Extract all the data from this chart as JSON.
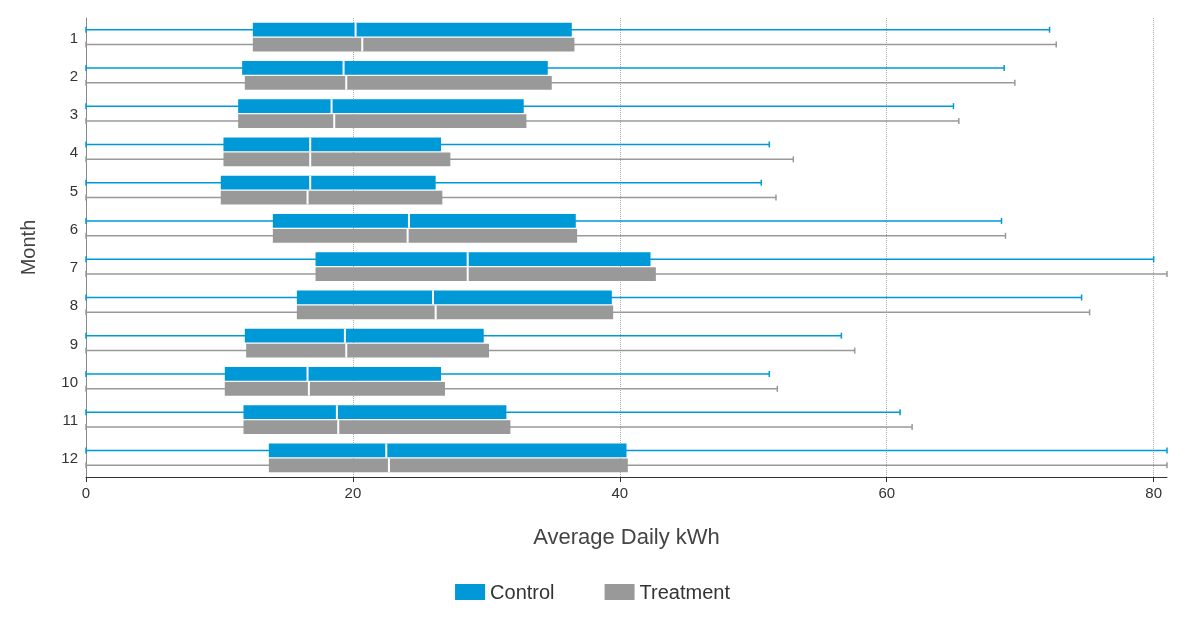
{
  "chart_data": {
    "type": "box",
    "orientation": "horizontal",
    "xlabel": "Average Daily kWh",
    "ylabel": "Month",
    "categories": [
      "1",
      "2",
      "3",
      "4",
      "5",
      "6",
      "7",
      "8",
      "9",
      "10",
      "11",
      "12"
    ],
    "xlim": [
      0,
      81
    ],
    "xticks": [
      0,
      20,
      40,
      60,
      80
    ],
    "grid": "x",
    "legend": "bottom",
    "series": [
      {
        "name": "Control",
        "color": "#0099d8",
        "boxes": [
          {
            "low": 0,
            "q1": 12.5,
            "median": 20.2,
            "q3": 36.4,
            "high": 72.2
          },
          {
            "low": 0,
            "q1": 11.7,
            "median": 19.3,
            "q3": 34.6,
            "high": 68.8
          },
          {
            "low": 0,
            "q1": 11.4,
            "median": 18.4,
            "q3": 32.8,
            "high": 65.0
          },
          {
            "low": 0,
            "q1": 10.3,
            "median": 16.8,
            "q3": 26.6,
            "high": 51.2
          },
          {
            "low": 0,
            "q1": 10.1,
            "median": 16.8,
            "q3": 26.2,
            "high": 50.6
          },
          {
            "low": 0,
            "q1": 14.0,
            "median": 24.2,
            "q3": 36.7,
            "high": 68.6
          },
          {
            "low": 0,
            "q1": 17.2,
            "median": 28.6,
            "q3": 42.3,
            "high": 80.0
          },
          {
            "low": 0,
            "q1": 15.8,
            "median": 26.0,
            "q3": 39.4,
            "high": 74.6
          },
          {
            "low": 0,
            "q1": 11.9,
            "median": 19.4,
            "q3": 29.8,
            "high": 56.6
          },
          {
            "low": 0,
            "q1": 10.4,
            "median": 16.6,
            "q3": 26.6,
            "high": 51.2
          },
          {
            "low": 0,
            "q1": 11.8,
            "median": 18.8,
            "q3": 31.5,
            "high": 61.0
          },
          {
            "low": 0,
            "q1": 13.7,
            "median": 22.5,
            "q3": 40.5,
            "high": 81
          }
        ]
      },
      {
        "name": "Treatment",
        "color": "#999999",
        "boxes": [
          {
            "low": 0,
            "q1": 12.5,
            "median": 20.7,
            "q3": 36.6,
            "high": 72.7
          },
          {
            "low": 0,
            "q1": 11.9,
            "median": 19.5,
            "q3": 34.9,
            "high": 69.6
          },
          {
            "low": 0,
            "q1": 11.4,
            "median": 18.6,
            "q3": 33.0,
            "high": 65.4
          },
          {
            "low": 0,
            "q1": 10.3,
            "median": 16.8,
            "q3": 27.3,
            "high": 53.0
          },
          {
            "low": 0,
            "q1": 10.1,
            "median": 16.6,
            "q3": 26.7,
            "high": 51.7
          },
          {
            "low": 0,
            "q1": 14.0,
            "median": 24.1,
            "q3": 36.8,
            "high": 68.9
          },
          {
            "low": 0,
            "q1": 17.2,
            "median": 28.6,
            "q3": 42.7,
            "high": 81
          },
          {
            "low": 0,
            "q1": 15.8,
            "median": 26.2,
            "q3": 39.5,
            "high": 75.2
          },
          {
            "low": 0,
            "q1": 12.0,
            "median": 19.5,
            "q3": 30.2,
            "high": 57.6
          },
          {
            "low": 0,
            "q1": 10.4,
            "median": 16.7,
            "q3": 26.9,
            "high": 51.8
          },
          {
            "low": 0,
            "q1": 11.8,
            "median": 18.9,
            "q3": 31.8,
            "high": 61.9
          },
          {
            "low": 0,
            "q1": 13.7,
            "median": 22.7,
            "q3": 40.6,
            "high": 81
          }
        ]
      }
    ]
  }
}
